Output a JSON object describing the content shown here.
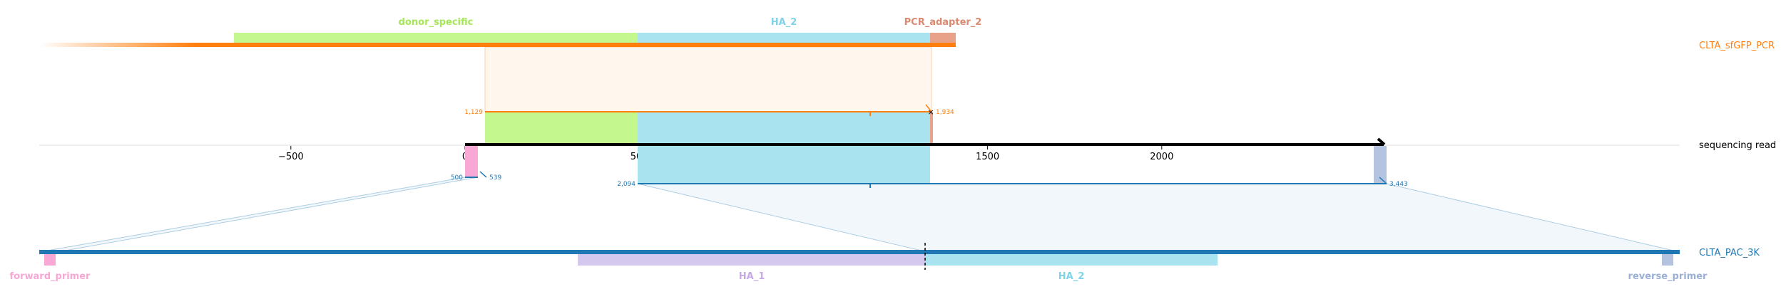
{
  "diagram": {
    "ref_track": {
      "label": "sequencing read"
    },
    "axis": {
      "ticks": [
        {
          "value": -500,
          "label": "−500"
        },
        {
          "value": 0,
          "label": "0"
        },
        {
          "value": 500,
          "label": "500"
        },
        {
          "value": 1000,
          "label": "1000"
        },
        {
          "value": 1500,
          "label": "1500"
        },
        {
          "value": 2000,
          "label": "2000"
        }
      ]
    },
    "top_track": {
      "label": "CLTA_sfGFP_PCR",
      "color": "#ff7f0e",
      "features": [
        {
          "name": "donor_specific",
          "color": "#c5f78f",
          "label_color": "#a6e65a"
        },
        {
          "name": "HA_2",
          "color": "#a9e3ef",
          "label_color": "#7fd3e8"
        },
        {
          "name": "PCR_adapter_2",
          "color": "#e8a28a",
          "label_color": "#d98a70"
        }
      ],
      "alignment": {
        "start_label": "1,129",
        "end_label": "1,934"
      }
    },
    "bottom_track": {
      "label": "CLTA_PAC_3K",
      "color": "#1f77b4",
      "features": [
        {
          "name": "forward_primer",
          "color": "#f7a8d4",
          "label_color": "#f7a8d4"
        },
        {
          "name": "HA_1",
          "color": "#d5c8ee",
          "label_color": "#c7a9e6"
        },
        {
          "name": "HA_2",
          "color": "#a9e3ef",
          "label_color": "#7fd3e8"
        },
        {
          "name": "reverse_primer",
          "color": "#b3c3e0",
          "label_color": "#9cb0d6"
        }
      ],
      "alignments": [
        {
          "start_label": "500",
          "end_label": "539"
        },
        {
          "start_label": "2,094",
          "end_label": "3,443"
        }
      ]
    }
  }
}
